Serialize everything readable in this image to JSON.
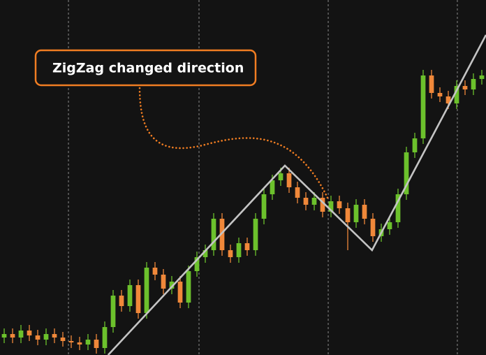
{
  "chart_data": {
    "type": "candlestick",
    "annotation": "ZigZag changed direction",
    "categories": [
      null,
      null,
      null,
      null,
      null,
      null,
      null,
      null,
      null,
      null,
      null,
      null,
      null,
      null,
      null,
      null,
      null,
      null,
      null,
      null,
      null,
      null,
      null,
      null,
      null,
      null,
      null,
      null,
      null,
      null,
      null,
      null,
      null,
      null,
      null,
      null,
      null,
      null,
      null,
      null,
      null,
      null,
      null,
      null,
      null,
      null,
      null,
      null,
      null,
      null,
      null,
      null,
      null,
      null,
      null,
      null,
      null,
      null
    ],
    "open": [
      25,
      30,
      25,
      35,
      28,
      22,
      30,
      25,
      20,
      18,
      15,
      22,
      10,
      40,
      85,
      70,
      100,
      60,
      125,
      115,
      95,
      105,
      75,
      120,
      140,
      150,
      195,
      150,
      140,
      160,
      150,
      195,
      230,
      250,
      260,
      240,
      225,
      215,
      225,
      205,
      220,
      210,
      190,
      215,
      195,
      170,
      180,
      190,
      230,
      290,
      310,
      400,
      375,
      370,
      360,
      385,
      380,
      395
    ],
    "close": [
      30,
      25,
      35,
      28,
      22,
      30,
      25,
      20,
      18,
      15,
      22,
      10,
      40,
      85,
      70,
      100,
      60,
      125,
      115,
      95,
      105,
      75,
      120,
      140,
      150,
      195,
      150,
      140,
      160,
      150,
      195,
      230,
      250,
      260,
      240,
      225,
      215,
      225,
      205,
      220,
      210,
      190,
      215,
      195,
      170,
      180,
      190,
      230,
      290,
      310,
      400,
      375,
      370,
      360,
      385,
      380,
      395,
      400
    ],
    "high": [
      38,
      38,
      43,
      43,
      36,
      38,
      38,
      33,
      28,
      26,
      30,
      30,
      48,
      93,
      93,
      108,
      108,
      133,
      133,
      123,
      113,
      113,
      128,
      148,
      158,
      203,
      203,
      158,
      168,
      168,
      203,
      238,
      258,
      268,
      268,
      248,
      233,
      233,
      233,
      228,
      228,
      218,
      223,
      223,
      203,
      188,
      198,
      238,
      298,
      318,
      408,
      408,
      383,
      378,
      393,
      393,
      403,
      408
    ],
    "low": [
      17,
      17,
      17,
      20,
      14,
      14,
      17,
      12,
      10,
      7,
      7,
      2,
      2,
      32,
      62,
      62,
      52,
      52,
      107,
      87,
      87,
      67,
      67,
      112,
      132,
      142,
      142,
      132,
      132,
      142,
      142,
      187,
      222,
      242,
      232,
      217,
      207,
      207,
      197,
      197,
      202,
      150,
      182,
      187,
      162,
      162,
      172,
      182,
      222,
      282,
      302,
      367,
      362,
      352,
      352,
      372,
      372,
      387
    ],
    "up_color": "#6cc12c",
    "down_color": "#f0883a",
    "zigzag": {
      "x": [
        12.4,
        33.5,
        43.9,
        57.5
      ],
      "values": [
        0,
        271,
        150,
        458
      ],
      "color": "#c4c4c4"
    },
    "xlim": [
      -0.5,
      57.5
    ],
    "ylim": [
      0,
      508
    ],
    "xticks": [
      7.67,
      23.25,
      38.67,
      54.08
    ],
    "grid": true,
    "annotation_color": "#f07d22"
  }
}
